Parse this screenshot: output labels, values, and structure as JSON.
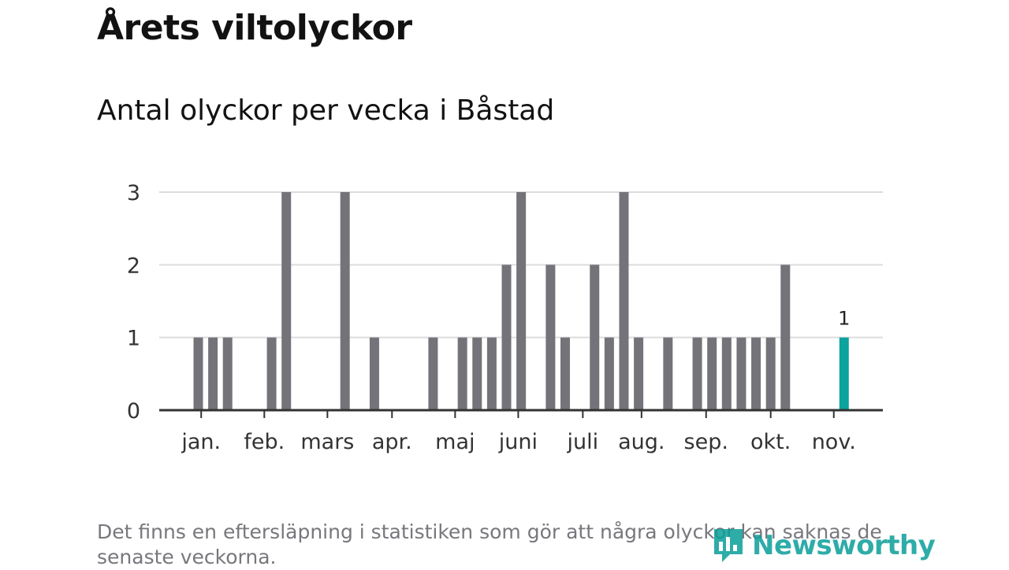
{
  "header": {
    "title": "Årets viltolyckor",
    "subtitle": "Antal olyckor per vecka i Båstad"
  },
  "footnote": "Det finns en eftersläpning i statistiken som gör att några olyckor kan saknas de senaste veckorna.",
  "logo": {
    "text": "Newsworthy",
    "icon": "newsworthy-logo-icon"
  },
  "colors": {
    "bar": "#747379",
    "highlight": "#0aa39e",
    "grid": "#dcdcdc",
    "axis": "#333333",
    "brand": "#0a9e9a"
  },
  "chart_data": {
    "type": "bar",
    "title": "Årets viltolyckor",
    "subtitle": "Antal olyckor per vecka i Båstad",
    "xlabel": "",
    "ylabel": "",
    "x": [
      1,
      2,
      3,
      4,
      5,
      6,
      7,
      8,
      9,
      10,
      11,
      12,
      13,
      14,
      15,
      16,
      17,
      18,
      19,
      20,
      21,
      22,
      23,
      24,
      25,
      26,
      27,
      28,
      29,
      30,
      31,
      32,
      33,
      34,
      35,
      36,
      37,
      38,
      39,
      40,
      41,
      42,
      43,
      44,
      45,
      46
    ],
    "values": [
      0,
      1,
      1,
      1,
      0,
      0,
      1,
      3,
      0,
      0,
      0,
      3,
      0,
      1,
      0,
      0,
      0,
      1,
      0,
      1,
      1,
      1,
      2,
      3,
      0,
      2,
      1,
      0,
      2,
      1,
      3,
      1,
      0,
      1,
      0,
      1,
      1,
      1,
      1,
      1,
      1,
      2,
      0,
      0,
      0,
      1
    ],
    "highlight_index": 45,
    "highlight_label": "1",
    "ylim": [
      0,
      3
    ],
    "yticks": [
      0,
      1,
      2,
      3
    ],
    "month_labels": [
      "jan.",
      "feb.",
      "mars",
      "apr.",
      "maj",
      "juni",
      "juli",
      "aug.",
      "sep.",
      "okt.",
      "nov."
    ],
    "month_tick_weeks": [
      2.2,
      6.5,
      10.8,
      15.2,
      19.5,
      23.8,
      28.2,
      32.2,
      36.6,
      41,
      45.3
    ],
    "grid": true,
    "legend": "none"
  }
}
